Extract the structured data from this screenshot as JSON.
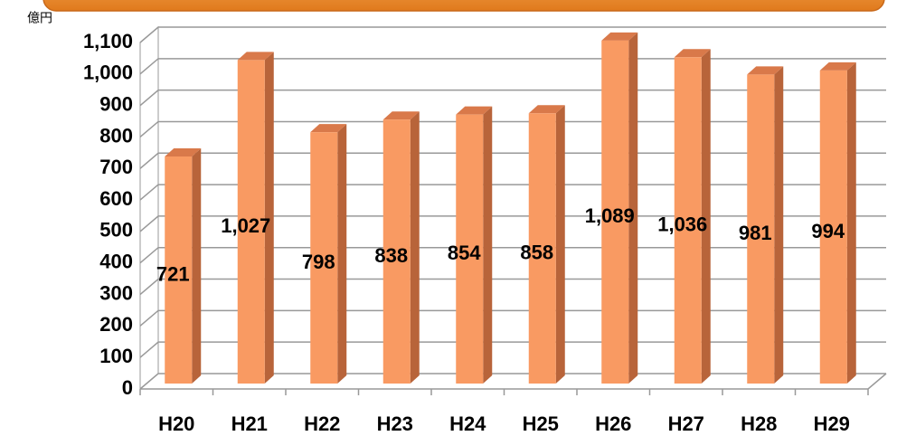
{
  "chart_data": {
    "type": "bar3d",
    "y_label": "億円",
    "categories": [
      "H20",
      "H21",
      "H22",
      "H23",
      "H24",
      "H25",
      "H26",
      "H27",
      "H28",
      "H29"
    ],
    "values": [
      721,
      1027,
      798,
      838,
      854,
      858,
      1089,
      1036,
      981,
      994
    ],
    "value_labels": [
      "721",
      "1,027",
      "798",
      "838",
      "854",
      "858",
      "1,089",
      "1,036",
      "981",
      "994"
    ],
    "color": "#f99a62",
    "ylim": [
      0,
      1100
    ],
    "yticks": [
      0,
      100,
      200,
      300,
      400,
      500,
      600,
      700,
      800,
      900,
      {
        "value": 1000,
        "label": "1,000"
      },
      {
        "value": 1100,
        "label": "1,100"
      }
    ],
    "grid": true
  }
}
